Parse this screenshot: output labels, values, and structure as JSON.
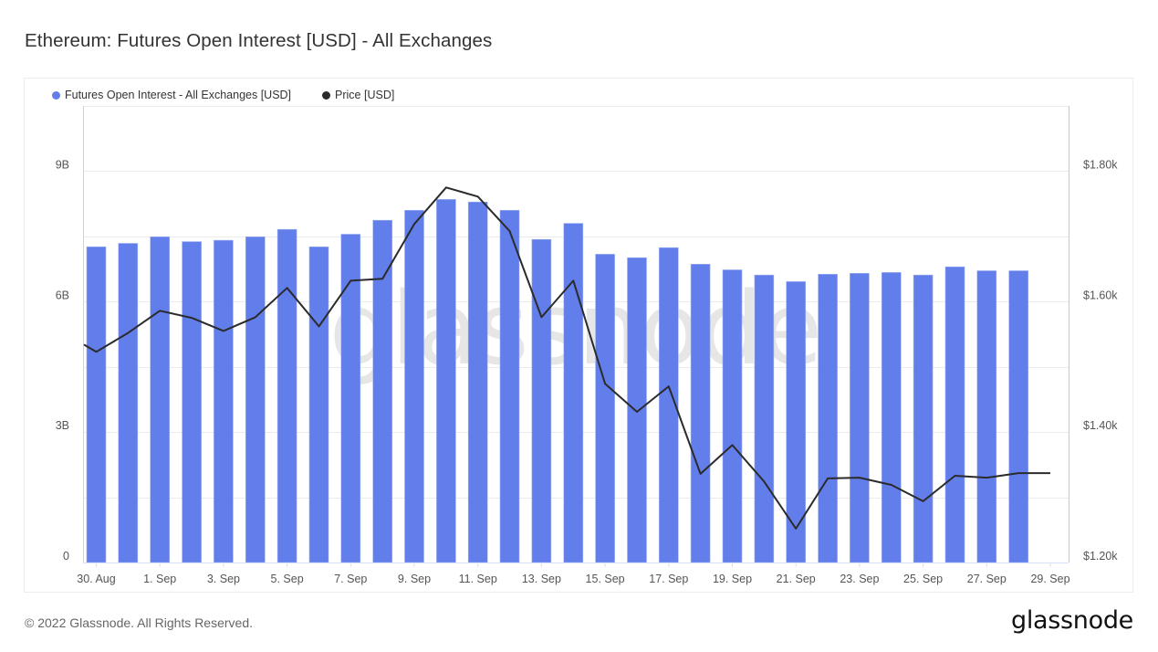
{
  "header": {
    "title": "Ethereum: Futures Open Interest [USD] - All Exchanges"
  },
  "legend": {
    "items": [
      {
        "label": "Futures Open Interest - All Exchanges [USD]",
        "color": "#627eea"
      },
      {
        "label": "Price [USD]",
        "color": "#2b2b2b"
      }
    ]
  },
  "watermark": "glassnode",
  "footer": {
    "copyright": "© 2022 Glassnode. All Rights Reserved.",
    "logo": "glassnode"
  },
  "colors": {
    "bar": "#627eea",
    "line": "#2b2b2b",
    "grid": "#ebebeb",
    "left_axis_line": "#c6d0f5",
    "right_axis_line": "#c8c8c8"
  },
  "chart_data": {
    "type": "bar",
    "title": "Ethereum: Futures Open Interest [USD] - All Exchanges",
    "xlabel": "",
    "ylabel": "Futures Open Interest [USD]",
    "y2label": "Price [USD]",
    "grid": true,
    "legend_position": "top-left",
    "ylim": [
      0,
      10.5
    ],
    "y2lim": [
      1200,
      1900
    ],
    "left_ticks": [
      {
        "value": 0,
        "label": "0"
      },
      {
        "value": 3,
        "label": "3B"
      },
      {
        "value": 6,
        "label": "6B"
      },
      {
        "value": 9,
        "label": "9B"
      }
    ],
    "right_ticks": [
      {
        "value": 1200,
        "label": "$1.20k"
      },
      {
        "value": 1400,
        "label": "$1.40k"
      },
      {
        "value": 1600,
        "label": "$1.60k"
      },
      {
        "value": 1800,
        "label": "$1.80k"
      }
    ],
    "x_tick_labels": [
      "30. Aug",
      "1. Sep",
      "3. Sep",
      "5. Sep",
      "7. Sep",
      "9. Sep",
      "11. Sep",
      "13. Sep",
      "15. Sep",
      "17. Sep",
      "19. Sep",
      "21. Sep",
      "23. Sep",
      "25. Sep",
      "27. Sep",
      "29. Sep"
    ],
    "categories": [
      "30 Aug",
      "31 Aug",
      "1 Sep",
      "2 Sep",
      "3 Sep",
      "4 Sep",
      "5 Sep",
      "6 Sep",
      "7 Sep",
      "8 Sep",
      "9 Sep",
      "10 Sep",
      "11 Sep",
      "12 Sep",
      "13 Sep",
      "14 Sep",
      "15 Sep",
      "16 Sep",
      "17 Sep",
      "18 Sep",
      "19 Sep",
      "20 Sep",
      "21 Sep",
      "22 Sep",
      "23 Sep",
      "24 Sep",
      "25 Sep",
      "26 Sep",
      "27 Sep",
      "28 Sep",
      "29 Sep"
    ],
    "series": [
      {
        "name": "Futures Open Interest - All Exchanges [USD]",
        "type": "bar",
        "axis": "left",
        "unit": "B USD",
        "values": [
          7.26,
          7.34,
          7.49,
          7.38,
          7.41,
          7.49,
          7.66,
          7.26,
          7.55,
          7.87,
          8.1,
          8.35,
          8.29,
          8.1,
          7.43,
          7.8,
          7.09,
          7.01,
          7.24,
          6.86,
          6.73,
          6.61,
          6.46,
          6.63,
          6.65,
          6.67,
          6.61,
          6.8,
          6.71,
          6.71,
          null
        ]
      },
      {
        "name": "Price [USD]",
        "type": "line",
        "axis": "right",
        "unit": "USD",
        "start_value": 1534,
        "values": [
          1523,
          1552,
          1586,
          1575,
          1555,
          1576,
          1621,
          1562,
          1632,
          1635,
          1719,
          1775,
          1761,
          1708,
          1576,
          1632,
          1474,
          1431,
          1470,
          1336,
          1380,
          1324,
          1252,
          1329,
          1330,
          1319,
          1294,
          1333,
          1330,
          1337,
          1337
        ]
      }
    ]
  }
}
